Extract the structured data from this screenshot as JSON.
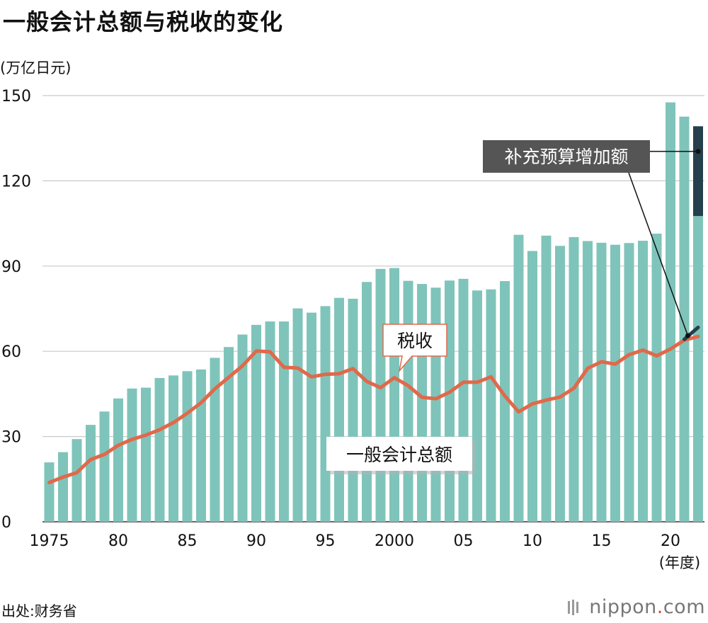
{
  "header": {
    "title": "一般会计总额与税收的变化",
    "unit": "(万亿日元)"
  },
  "footer": {
    "source": "出处:财务省",
    "brand_name": "nippon",
    "brand_dot": ".",
    "brand_suffix": "com"
  },
  "colors": {
    "bar": "#7fc4ba",
    "supplementary": "#24404c",
    "line": "#e0694a",
    "grid": "#c9c9c9",
    "callout_dark": "#555555",
    "brand_accent": "#e0401c"
  },
  "chart_data": {
    "type": "bar",
    "title": "",
    "xlabel": "(年度)",
    "ylabel": "(万亿日元)",
    "ylim": [
      0,
      150
    ],
    "yticks": [
      0,
      30,
      60,
      90,
      120,
      150
    ],
    "grid": true,
    "x": [
      1975,
      1976,
      1977,
      1978,
      1979,
      1980,
      1981,
      1982,
      1983,
      1984,
      1985,
      1986,
      1987,
      1988,
      1989,
      1990,
      1991,
      1992,
      1993,
      1994,
      1995,
      1996,
      1997,
      1998,
      1999,
      2000,
      2001,
      2002,
      2003,
      2004,
      2005,
      2006,
      2007,
      2008,
      2009,
      2010,
      2011,
      2012,
      2013,
      2014,
      2015,
      2016,
      2017,
      2018,
      2019,
      2020,
      2021,
      2022
    ],
    "xtick_values": [
      1975,
      1980,
      1985,
      1990,
      1995,
      2000,
      2005,
      2010,
      2015,
      2020
    ],
    "xtick_labels": [
      "1975",
      "80",
      "85",
      "90",
      "95",
      "2000",
      "05",
      "10",
      "15",
      "20"
    ],
    "series": [
      {
        "name": "一般会计总额",
        "type": "bar",
        "values": [
          20.9,
          24.5,
          29.1,
          34.1,
          38.8,
          43.4,
          46.9,
          47.2,
          50.6,
          51.5,
          53.0,
          53.6,
          57.7,
          61.5,
          65.9,
          69.3,
          70.5,
          70.5,
          75.1,
          73.6,
          75.9,
          78.8,
          78.5,
          84.4,
          89.0,
          89.3,
          84.8,
          83.7,
          82.4,
          84.9,
          85.5,
          81.4,
          81.8,
          84.7,
          101.0,
          95.3,
          100.7,
          97.1,
          100.2,
          98.8,
          98.2,
          97.5,
          98.1,
          98.9,
          101.4,
          147.6,
          142.6,
          107.6
        ]
      },
      {
        "name": "补充预算增加额",
        "type": "bar-stack",
        "x": [
          2022
        ],
        "values": [
          31.6
        ]
      },
      {
        "name": "税收",
        "type": "line",
        "values": [
          13.8,
          15.7,
          17.3,
          21.9,
          23.7,
          26.9,
          29.0,
          30.5,
          32.4,
          34.9,
          38.2,
          41.9,
          46.8,
          50.8,
          54.9,
          60.1,
          59.8,
          54.4,
          54.1,
          51.0,
          51.9,
          52.1,
          53.9,
          49.4,
          47.2,
          50.7,
          47.9,
          43.8,
          43.3,
          45.6,
          49.1,
          49.1,
          51.0,
          44.3,
          38.7,
          41.5,
          42.8,
          43.9,
          47.0,
          54.0,
          56.3,
          55.5,
          58.8,
          60.4,
          58.4,
          60.8,
          63.9,
          65.2
        ]
      },
      {
        "name": "",
        "type": "line-extension",
        "x": [
          2021,
          2022
        ],
        "values": [
          64.2,
          68.4
        ]
      }
    ],
    "labels": {
      "bars": "一般会计总额",
      "tax": "税收",
      "supplementary": "补充预算增加额"
    }
  }
}
